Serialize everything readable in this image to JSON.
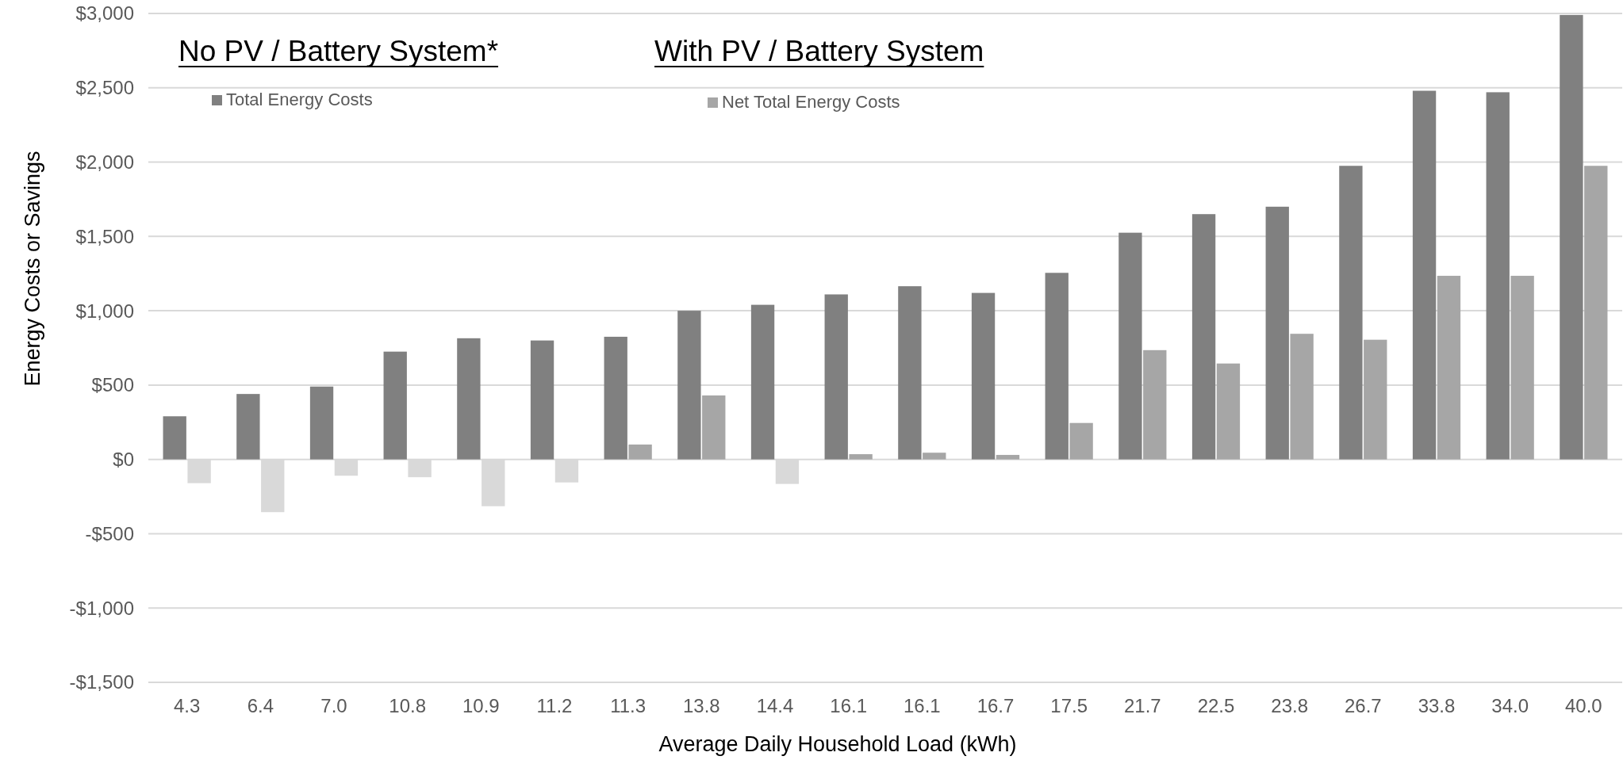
{
  "chart_data": {
    "type": "bar",
    "xlabel": "Average Daily Household Load (kWh)",
    "ylabel": "Energy Costs or Savings",
    "categories": [
      "4.3",
      "6.4",
      "7.0",
      "10.8",
      "10.9",
      "11.2",
      "11.3",
      "13.8",
      "14.4",
      "16.1",
      "16.1",
      "16.7",
      "17.5",
      "21.7",
      "22.5",
      "23.8",
      "26.7",
      "33.8",
      "34.0",
      "40.0"
    ],
    "series": [
      {
        "name": "Total Energy Costs",
        "color": "#808080",
        "values": [
          290,
          440,
          490,
          725,
          815,
          800,
          825,
          1000,
          1040,
          1110,
          1165,
          1120,
          1255,
          1525,
          1650,
          1700,
          1975,
          2480,
          2470,
          2990
        ]
      },
      {
        "name": "Net Total Energy Costs",
        "color": "#a6a6a6",
        "colors": [
          "#d9d9d9",
          "#d9d9d9",
          "#d9d9d9",
          "#d9d9d9",
          "#d9d9d9",
          "#d9d9d9",
          "#a6a6a6",
          "#a6a6a6",
          "#d9d9d9",
          "#a6a6a6",
          "#a6a6a6",
          "#a6a6a6",
          "#a6a6a6",
          "#a6a6a6",
          "#a6a6a6",
          "#a6a6a6",
          "#a6a6a6",
          "#a6a6a6",
          "#a6a6a6",
          "#a6a6a6"
        ],
        "values": [
          -160,
          -355,
          -110,
          -120,
          -315,
          -155,
          100,
          430,
          -165,
          35,
          45,
          30,
          245,
          735,
          645,
          845,
          805,
          1235,
          1235,
          1975
        ]
      }
    ],
    "annotations": [
      "No PV / Battery System*",
      "With PV / Battery System"
    ],
    "ylim": [
      -1500,
      3000
    ],
    "yticks": [
      {
        "value": -1500,
        "label": "-$1,500"
      },
      {
        "value": -1000,
        "label": "-$1,000"
      },
      {
        "value": -500,
        "label": "-$500"
      },
      {
        "value": 0,
        "label": "$0"
      },
      {
        "value": 500,
        "label": "$500"
      },
      {
        "value": 1000,
        "label": "$1,000"
      },
      {
        "value": 1500,
        "label": "$1,500"
      },
      {
        "value": 2000,
        "label": "$2,000"
      },
      {
        "value": 2500,
        "label": "$2,500"
      },
      {
        "value": 3000,
        "label": "$3,000"
      }
    ],
    "grid": "y",
    "legend": "top left"
  }
}
